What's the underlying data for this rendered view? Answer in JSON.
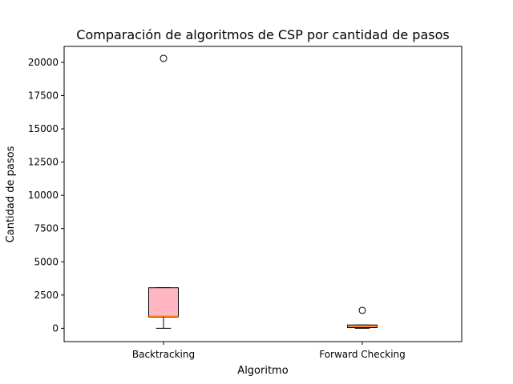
{
  "chart_data": {
    "type": "box",
    "title": "Comparación de algoritmos de CSP por cantidad de pasos",
    "xlabel": "Algoritmo",
    "ylabel": "Cantidad de pasos",
    "ylim": [
      -1000,
      21200
    ],
    "yticks": [
      0,
      2500,
      5000,
      7500,
      10000,
      12500,
      15000,
      17500,
      20000
    ],
    "grid": false,
    "categories": [
      "Backtracking",
      "Forward Checking"
    ],
    "boxes": [
      {
        "name": "Backtracking",
        "whisker_low": 0,
        "q1": 850,
        "median": 900,
        "q3": 3050,
        "whisker_high": 3050,
        "outliers": [
          20300
        ],
        "fill": "#ffb6c1"
      },
      {
        "name": "Forward Checking",
        "whisker_low": 0,
        "q1": 50,
        "median": 130,
        "q3": 250,
        "whisker_high": 250,
        "outliers": [
          1350
        ],
        "fill": "#ffb6c1"
      }
    ],
    "median_color": "#ff7f0e",
    "box_edge_color": "#000000"
  }
}
